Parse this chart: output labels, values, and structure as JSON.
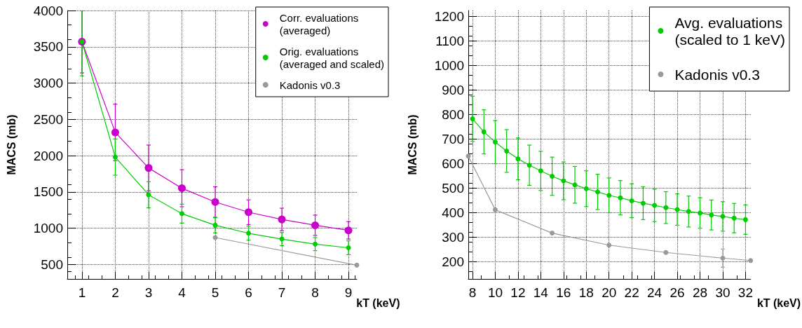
{
  "chart_data": [
    {
      "type": "line",
      "xlabel": "kT (keV)",
      "ylabel": "MACS (mb)",
      "xlim": [
        0.56,
        9.25
      ],
      "ylim": [
        300,
        4000
      ],
      "xticks": [
        1,
        2,
        3,
        4,
        5,
        6,
        7,
        8,
        9
      ],
      "yticks": [
        500,
        1000,
        1500,
        2000,
        2500,
        3000,
        3500,
        4000
      ],
      "grid": true,
      "legend": "top right",
      "marker": "circle",
      "line_style": "solid",
      "series": [
        {
          "name": "Corr. evaluations\n(averaged)",
          "color": "#cc00cc",
          "x": [
            1,
            2,
            3,
            4,
            5,
            6,
            7,
            8,
            9
          ],
          "values": [
            3570,
            2320,
            1830,
            1550,
            1360,
            1220,
            1120,
            1040,
            970
          ],
          "errors": [
            430,
            390,
            315,
            255,
            210,
            170,
            155,
            140,
            120
          ]
        },
        {
          "name": "Orig. evaluations\n(averaged and scaled)",
          "color": "#00cc00",
          "x": [
            1,
            2,
            3,
            4,
            5,
            6,
            7,
            8,
            9
          ],
          "values": [
            3570,
            1980,
            1460,
            1200,
            1040,
            930,
            850,
            780,
            730
          ],
          "errors": [
            470,
            250,
            180,
            130,
            105,
            95,
            90,
            90,
            95
          ]
        },
        {
          "name": "Kadonis v0.3",
          "color": "#999999",
          "x": [
            5,
            9.25
          ],
          "values": [
            870,
            490
          ]
        }
      ]
    },
    {
      "type": "line",
      "xlabel": "kT (keV)",
      "ylabel": "MACS (mb)",
      "xlim": [
        7.63,
        32.45
      ],
      "ylim": [
        130,
        1225
      ],
      "xticks": [
        8,
        10,
        12,
        14,
        16,
        18,
        20,
        22,
        24,
        26,
        28,
        30,
        32
      ],
      "yticks": [
        200,
        300,
        400,
        500,
        600,
        700,
        800,
        900,
        1000,
        1100,
        1200
      ],
      "grid": true,
      "legend": "top right",
      "marker": "circle",
      "line_style": "solid",
      "series": [
        {
          "name": "Avg. evaluations\n(scaled to 1 keV)",
          "color": "#00cc00",
          "x": [
            8,
            9,
            10,
            11,
            12,
            13,
            14,
            15,
            16,
            17,
            18,
            19,
            20,
            21,
            22,
            23,
            24,
            25,
            26,
            27,
            28,
            29,
            30,
            31,
            32
          ],
          "values": [
            783,
            730,
            688,
            652,
            620,
            594,
            571,
            549,
            530,
            514,
            498,
            485,
            471,
            461,
            449,
            439,
            430,
            421,
            413,
            405,
            399,
            391,
            385,
            378,
            372
          ],
          "errors": [
            92,
            90,
            88,
            87,
            85,
            82,
            80,
            78,
            77,
            75,
            73,
            72,
            71,
            70,
            69,
            67,
            66,
            65,
            64,
            63,
            62,
            61,
            60,
            60,
            60
          ]
        },
        {
          "name": "Kadonis v0.3",
          "color": "#999999",
          "x": [
            7.63,
            10,
            15,
            20,
            25,
            30,
            32.45
          ],
          "values": [
            631,
            412,
            317,
            268,
            238,
            215,
            205
          ],
          "errors": [
            null,
            null,
            null,
            null,
            null,
            37,
            null
          ]
        }
      ]
    }
  ]
}
